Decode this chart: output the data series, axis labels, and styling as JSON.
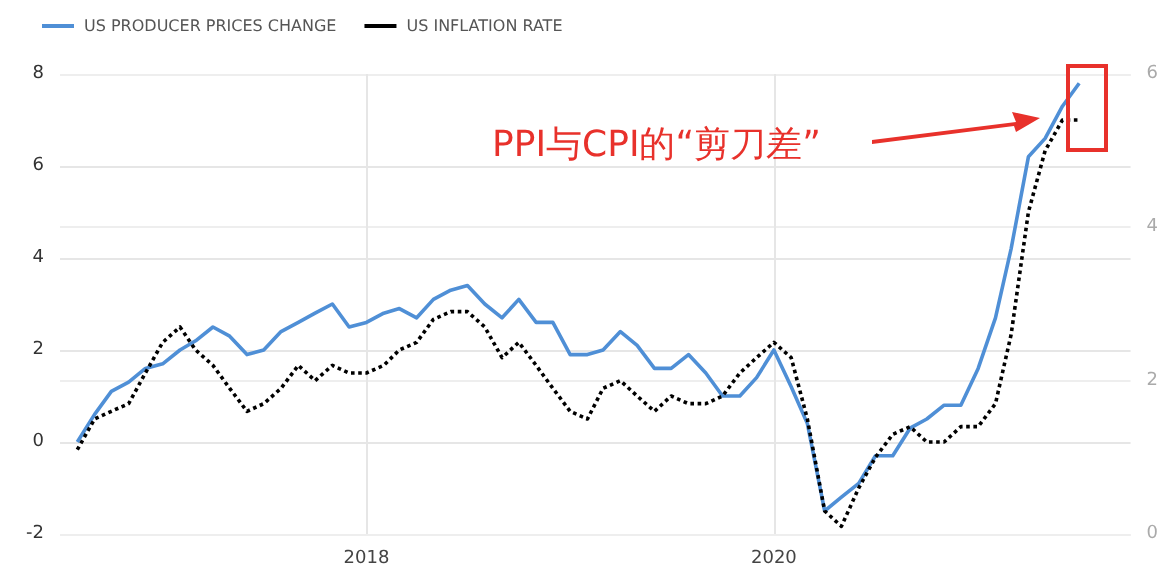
{
  "chart_data": {
    "type": "line",
    "x": [
      "2016-08",
      "2016-09",
      "2016-10",
      "2016-11",
      "2016-12",
      "2017-01",
      "2017-02",
      "2017-03",
      "2017-04",
      "2017-05",
      "2017-06",
      "2017-07",
      "2017-08",
      "2017-09",
      "2017-10",
      "2017-11",
      "2017-12",
      "2018-01",
      "2018-02",
      "2018-03",
      "2018-04",
      "2018-05",
      "2018-06",
      "2018-07",
      "2018-08",
      "2018-09",
      "2018-10",
      "2018-11",
      "2018-12",
      "2019-01",
      "2019-02",
      "2019-03",
      "2019-04",
      "2019-05",
      "2019-06",
      "2019-07",
      "2019-08",
      "2019-09",
      "2019-10",
      "2019-11",
      "2019-12",
      "2020-01",
      "2020-02",
      "2020-03",
      "2020-04",
      "2020-05",
      "2020-06",
      "2020-07",
      "2020-08",
      "2020-09",
      "2020-10",
      "2020-11",
      "2020-12",
      "2021-01",
      "2021-02",
      "2021-03",
      "2021-04",
      "2021-05",
      "2021-06",
      "2021-07"
    ],
    "series": [
      {
        "name": "US PRODUCER PRICES CHANGE",
        "color": "#4f8fd6",
        "line_style": "solid",
        "values": [
          0.0,
          0.6,
          1.1,
          1.3,
          1.6,
          1.7,
          2.0,
          2.2,
          2.5,
          2.3,
          1.9,
          2.0,
          2.4,
          2.6,
          2.8,
          3.0,
          2.5,
          2.6,
          2.8,
          2.9,
          2.7,
          3.1,
          3.3,
          3.4,
          3.0,
          2.7,
          3.1,
          2.6,
          2.6,
          1.9,
          1.9,
          2.0,
          2.4,
          2.1,
          1.6,
          1.6,
          1.9,
          1.5,
          1.0,
          1.0,
          1.4,
          2.0,
          1.2,
          0.4,
          -1.5,
          -1.2,
          -0.9,
          -0.3,
          -0.3,
          0.3,
          0.5,
          0.8,
          0.8,
          1.6,
          2.7,
          4.2,
          6.2,
          6.6,
          7.3,
          7.8
        ]
      },
      {
        "name": "US INFLATION RATE",
        "color": "#000000",
        "line_style": "dotted",
        "axis": "y2",
        "values": [
          1.1,
          1.5,
          1.6,
          1.7,
          2.1,
          2.5,
          2.7,
          2.4,
          2.2,
          1.9,
          1.6,
          1.7,
          1.9,
          2.2,
          2.0,
          2.2,
          2.1,
          2.1,
          2.2,
          2.4,
          2.5,
          2.8,
          2.9,
          2.9,
          2.7,
          2.3,
          2.5,
          2.2,
          1.9,
          1.6,
          1.5,
          1.9,
          2.0,
          1.8,
          1.6,
          1.8,
          1.7,
          1.7,
          1.8,
          2.1,
          2.3,
          2.5,
          2.3,
          1.5,
          0.3,
          0.1,
          0.6,
          1.0,
          1.3,
          1.4,
          1.2,
          1.2,
          1.4,
          1.4,
          1.7,
          2.6,
          4.2,
          5.0,
          5.4,
          5.4
        ]
      }
    ],
    "xlim": [
      "2016-07",
      "2021-10"
    ],
    "xticks": [
      "2018",
      "2020"
    ],
    "ylim": [
      -2,
      8
    ],
    "yticks": [
      -2,
      0,
      2,
      4,
      6,
      8
    ],
    "y2lim": [
      0,
      6
    ],
    "y2ticks": [
      0,
      2,
      4,
      6
    ],
    "grid": true,
    "legend": "top left",
    "marker": "none",
    "annotations": [
      "PPI与CPI的“剪刀差”"
    ]
  }
}
